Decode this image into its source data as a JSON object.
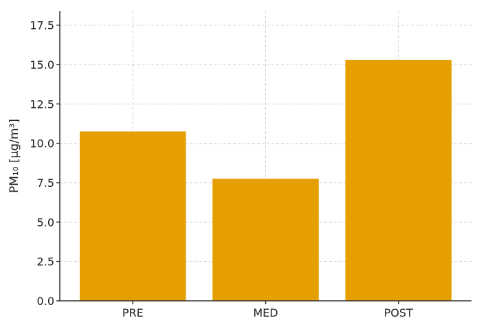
{
  "chart_data": {
    "type": "bar",
    "title": "",
    "xlabel": "",
    "ylabel": "PM₁₀ [µg/m³]",
    "categories": [
      "PRE",
      "MED",
      "POST"
    ],
    "values": [
      10.75,
      7.75,
      15.3
    ],
    "ylim": [
      0,
      18.4
    ],
    "yticks": [
      "0.0",
      "2.5",
      "5.0",
      "7.5",
      "10.0",
      "12.5",
      "15.0",
      "17.5"
    ],
    "grid": true,
    "bar_color": "#e69f00"
  }
}
